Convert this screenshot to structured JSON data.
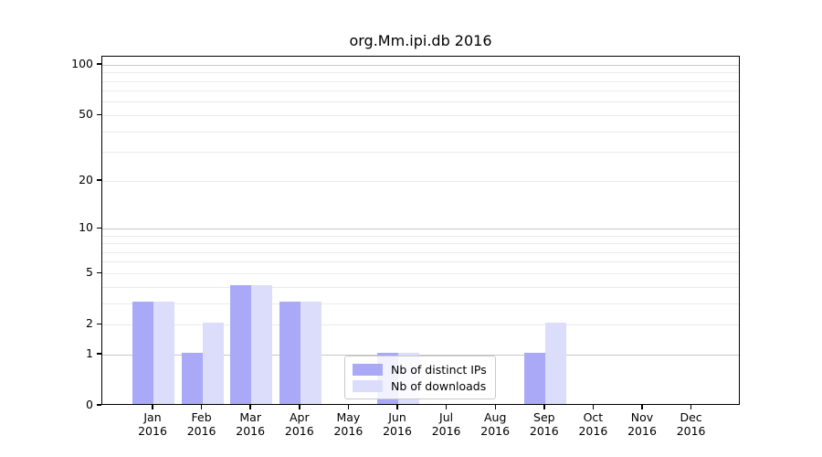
{
  "title": "org.Mm.ipi.db 2016",
  "legend": {
    "items": [
      {
        "label": "Nb of distinct IPs",
        "color": "#a9a9f8"
      },
      {
        "label": "Nb of downloads",
        "color": "#dcdcfb"
      }
    ]
  },
  "chart_data": {
    "type": "bar",
    "title": "org.Mm.ipi.db 2016",
    "categories": [
      "Jan",
      "Feb",
      "Mar",
      "Apr",
      "May",
      "Jun",
      "Jul",
      "Aug",
      "Sep",
      "Oct",
      "Nov",
      "Dec"
    ],
    "x_tick_year": "2016",
    "series": [
      {
        "name": "Nb of distinct IPs",
        "color": "#a9a9f8",
        "values": [
          3,
          1,
          4,
          3,
          0,
          1,
          0,
          0,
          1,
          0,
          0,
          0
        ]
      },
      {
        "name": "Nb of downloads",
        "color": "#dcdcfb",
        "values": [
          3,
          2,
          4,
          3,
          0,
          1,
          0,
          0,
          2,
          0,
          0,
          0
        ]
      }
    ],
    "y_ticks": [
      0,
      1,
      2,
      5,
      10,
      20,
      50,
      100
    ],
    "y_scale": "log10(1+x)",
    "ylim": [
      0,
      112
    ],
    "grid": true,
    "grid_minor_values": [
      3,
      4,
      6,
      7,
      8,
      9,
      30,
      40,
      60,
      70,
      80,
      90
    ],
    "legend_position": "inside lower-center"
  }
}
